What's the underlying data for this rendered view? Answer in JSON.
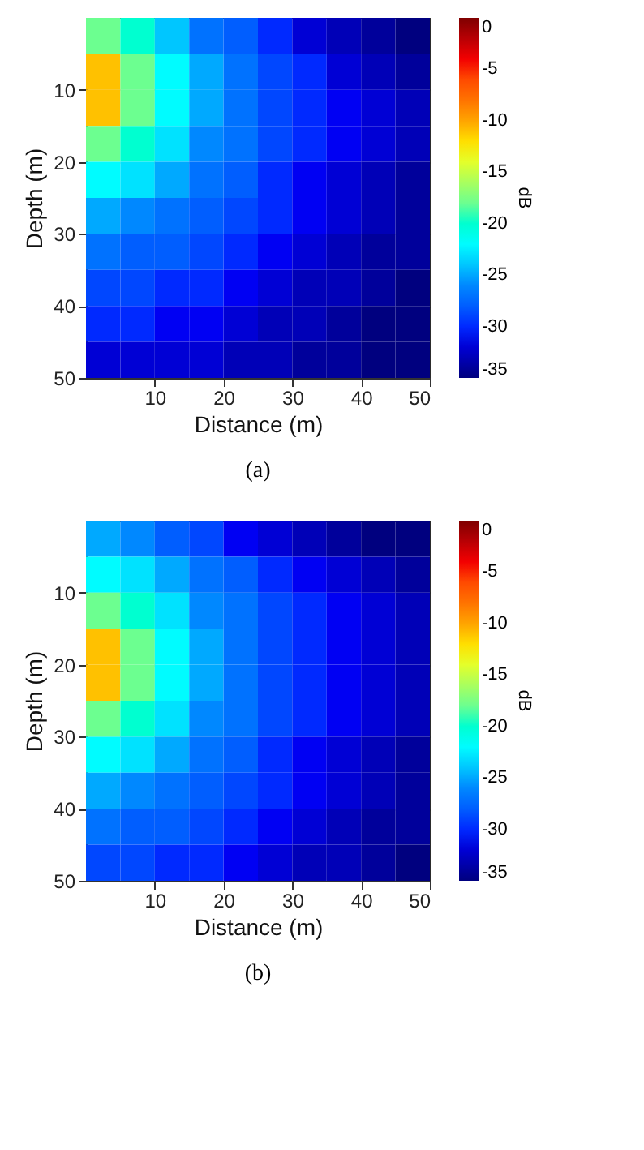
{
  "chart_data": [
    {
      "type": "heatmap",
      "xlabel": "Distance (m)",
      "ylabel": "Depth (m)",
      "clabel": "dB",
      "annotations": [
        "(a)"
      ],
      "x": [
        2.5,
        7.5,
        12.5,
        17.5,
        22.5,
        27.5,
        32.5,
        37.5,
        42.5,
        47.5
      ],
      "y": [
        2.5,
        7.5,
        12.5,
        17.5,
        22.5,
        27.5,
        32.5,
        37.5,
        42.5,
        47.5
      ],
      "xlim": [
        0,
        50
      ],
      "ylim": [
        50,
        0
      ],
      "xticks": [
        10,
        20,
        30,
        40,
        50
      ],
      "yticks": [
        10,
        20,
        30,
        40,
        50
      ],
      "clim": [
        -35,
        0
      ],
      "cticks": [
        0,
        -5,
        -10,
        -15,
        -20,
        -25,
        -30,
        -35
      ],
      "grid": true,
      "cells": [
        [
          -18,
          -20,
          -24,
          -27,
          -28,
          -30,
          -32,
          -33,
          -34,
          -35
        ],
        [
          -11,
          -18,
          -22,
          -25,
          -27,
          -29,
          -30,
          -32,
          -33,
          -34
        ],
        [
          -11,
          -18,
          -22,
          -25,
          -27,
          -29,
          -30,
          -31,
          -32,
          -33
        ],
        [
          -18,
          -20,
          -23,
          -26,
          -27,
          -29,
          -30,
          -31,
          -32,
          -33
        ],
        [
          -22,
          -23,
          -25,
          -27,
          -28,
          -30,
          -31,
          -32,
          -33,
          -34
        ],
        [
          -25,
          -26,
          -27,
          -28,
          -29,
          -30,
          -31,
          -32,
          -33,
          -34
        ],
        [
          -27,
          -28,
          -28,
          -29,
          -30,
          -31,
          -32,
          -33,
          -34,
          -34
        ],
        [
          -29,
          -29,
          -30,
          -30,
          -31,
          -32,
          -33,
          -33,
          -34,
          -35
        ],
        [
          -30,
          -30,
          -31,
          -31,
          -32,
          -33,
          -33,
          -34,
          -35,
          -35
        ],
        [
          -32,
          -32,
          -32,
          -32,
          -33,
          -33,
          -34,
          -34,
          -35,
          -35
        ]
      ]
    },
    {
      "type": "heatmap",
      "xlabel": "Distance (m)",
      "ylabel": "Depth (m)",
      "clabel": "dB",
      "annotations": [
        "(b)"
      ],
      "x": [
        2.5,
        7.5,
        12.5,
        17.5,
        22.5,
        27.5,
        32.5,
        37.5,
        42.5,
        47.5
      ],
      "y": [
        2.5,
        7.5,
        12.5,
        17.5,
        22.5,
        27.5,
        32.5,
        37.5,
        42.5,
        47.5
      ],
      "xlim": [
        0,
        50
      ],
      "ylim": [
        50,
        0
      ],
      "xticks": [
        10,
        20,
        30,
        40,
        50
      ],
      "yticks": [
        10,
        20,
        30,
        40,
        50
      ],
      "clim": [
        -35,
        0
      ],
      "cticks": [
        0,
        -5,
        -10,
        -15,
        -20,
        -25,
        -30,
        -35
      ],
      "grid": true,
      "cells": [
        [
          -25,
          -26,
          -28,
          -29,
          -31,
          -32,
          -33,
          -34,
          -35,
          -35
        ],
        [
          -22,
          -23,
          -25,
          -27,
          -28,
          -30,
          -31,
          -32,
          -33,
          -34
        ],
        [
          -18,
          -20,
          -23,
          -26,
          -27,
          -29,
          -30,
          -31,
          -32,
          -33
        ],
        [
          -11,
          -18,
          -22,
          -25,
          -27,
          -29,
          -30,
          -31,
          -32,
          -33
        ],
        [
          -11,
          -18,
          -22,
          -25,
          -27,
          -29,
          -30,
          -31,
          -32,
          -33
        ],
        [
          -18,
          -20,
          -23,
          -26,
          -27,
          -29,
          -30,
          -31,
          -32,
          -33
        ],
        [
          -22,
          -23,
          -25,
          -27,
          -28,
          -30,
          -31,
          -32,
          -33,
          -34
        ],
        [
          -25,
          -26,
          -27,
          -28,
          -29,
          -30,
          -31,
          -32,
          -33,
          -34
        ],
        [
          -27,
          -28,
          -28,
          -29,
          -30,
          -31,
          -32,
          -33,
          -34,
          -34
        ],
        [
          -29,
          -29,
          -30,
          -30,
          -31,
          -32,
          -33,
          -33,
          -34,
          -35
        ]
      ]
    }
  ]
}
